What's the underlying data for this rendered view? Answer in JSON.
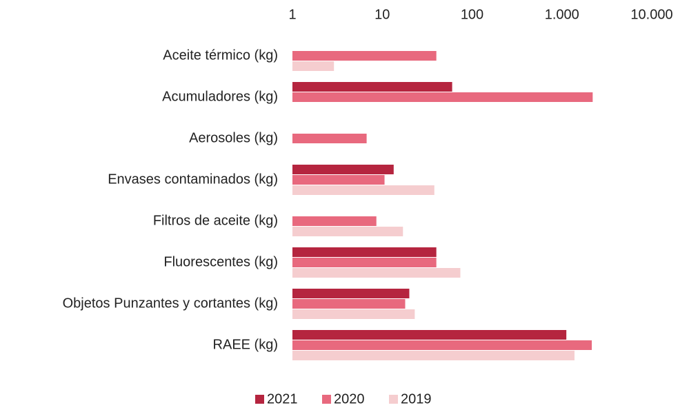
{
  "chart_data": {
    "type": "bar",
    "orientation": "horizontal",
    "log_scale": true,
    "categories": [
      "Aceite térmico (kg)",
      "Acumuladores (kg)",
      "Aerosoles (kg)",
      "Envases contaminados (kg)",
      "Filtros de aceite (kg)",
      "Fluorescentes (kg)",
      "Objetos Punzantes y cortantes (kg)",
      "RAEE (kg)"
    ],
    "series": [
      {
        "name": "2021",
        "color": "#b5253f",
        "values": [
          null,
          60,
          null,
          13.4,
          null,
          40,
          20,
          1120
        ]
      },
      {
        "name": "2020",
        "color": "#e8697e",
        "values": [
          40,
          2200,
          6.7,
          10.6,
          8.6,
          40,
          18,
          2150
        ]
      },
      {
        "name": "2019",
        "color": "#f5cdcf",
        "values": [
          2.9,
          null,
          null,
          38,
          17,
          74,
          23,
          1380
        ]
      }
    ],
    "xlim": [
      1,
      10000
    ],
    "xticks": [
      1,
      10,
      100,
      {
        "value": 1000,
        "label": "1.000"
      },
      {
        "value": 10000,
        "label": "10.000"
      }
    ],
    "grid": false,
    "legend": "bottom"
  }
}
